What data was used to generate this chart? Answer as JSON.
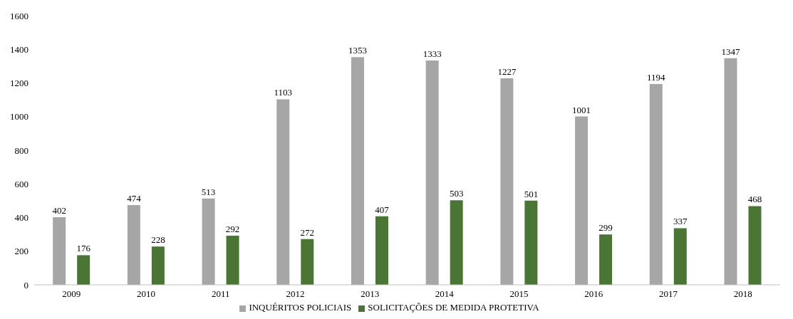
{
  "chart_data": {
    "type": "bar",
    "categories": [
      "2009",
      "2010",
      "2011",
      "2012",
      "2013",
      "2014",
      "2015",
      "2016",
      "2017",
      "2018"
    ],
    "series": [
      {
        "name": "INQUÉRITOS POLICIAIS",
        "color": "#a6a6a6",
        "values": [
          402,
          474,
          513,
          1103,
          1353,
          1333,
          1227,
          1001,
          1194,
          1347
        ]
      },
      {
        "name": "SOLICITAÇÕES DE MEDIDA PROTETIVA",
        "color": "#4a7535",
        "values": [
          176,
          228,
          292,
          272,
          407,
          503,
          501,
          299,
          337,
          468
        ]
      }
    ],
    "ylim": [
      0,
      1600
    ],
    "yticks": [
      0,
      200,
      400,
      600,
      800,
      1000,
      1200,
      1400,
      1600
    ],
    "grid": false,
    "legend": "bottom",
    "data_labels": true
  }
}
